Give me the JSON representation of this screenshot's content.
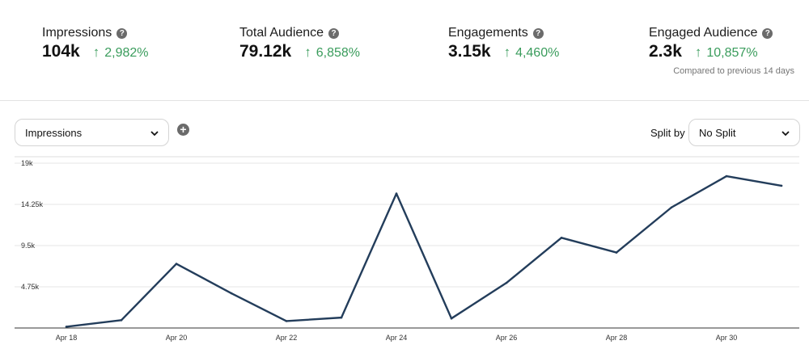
{
  "metrics": [
    {
      "label": "Impressions",
      "value": "104k",
      "delta": "2,982%"
    },
    {
      "label": "Total Audience",
      "value": "79.12k",
      "delta": "6,858%"
    },
    {
      "label": "Engagements",
      "value": "3.15k",
      "delta": "4,460%"
    },
    {
      "label": "Engaged Audience",
      "value": "2.3k",
      "delta": "10,857%"
    }
  ],
  "compared_text": "Compared to previous 14 days",
  "help_glyph": "?",
  "add_glyph": "+",
  "controls": {
    "metric_select": "Impressions",
    "split_label": "Split by",
    "split_select": "No Split"
  },
  "colors": {
    "line": "#233d5b",
    "positive": "#3a9c5c",
    "grid": "#e6e6e6",
    "axis": "#333333"
  },
  "chart_data": {
    "type": "line",
    "title": "",
    "xlabel": "",
    "ylabel": "",
    "x": [
      "Apr 18",
      "Apr 19",
      "Apr 20",
      "Apr 21",
      "Apr 22",
      "Apr 23",
      "Apr 24",
      "Apr 25",
      "Apr 26",
      "Apr 27",
      "Apr 28",
      "Apr 29",
      "Apr 30",
      "May 1"
    ],
    "x_tick_labels": [
      "Apr 18",
      "Apr 20",
      "Apr 22",
      "Apr 24",
      "Apr 26",
      "Apr 28",
      "Apr 30"
    ],
    "series": [
      {
        "name": "Impressions",
        "values": [
          150,
          900,
          7400,
          4000,
          800,
          1200,
          15500,
          1100,
          5200,
          10400,
          8700,
          13900,
          17500,
          16400
        ]
      }
    ],
    "y_ticks": [
      4750,
      9500,
      14250,
      19000
    ],
    "y_tick_labels": [
      "4.75k",
      "9.5k",
      "14.25k",
      "19k"
    ],
    "ylim": [
      0,
      19000
    ],
    "grid": true
  }
}
